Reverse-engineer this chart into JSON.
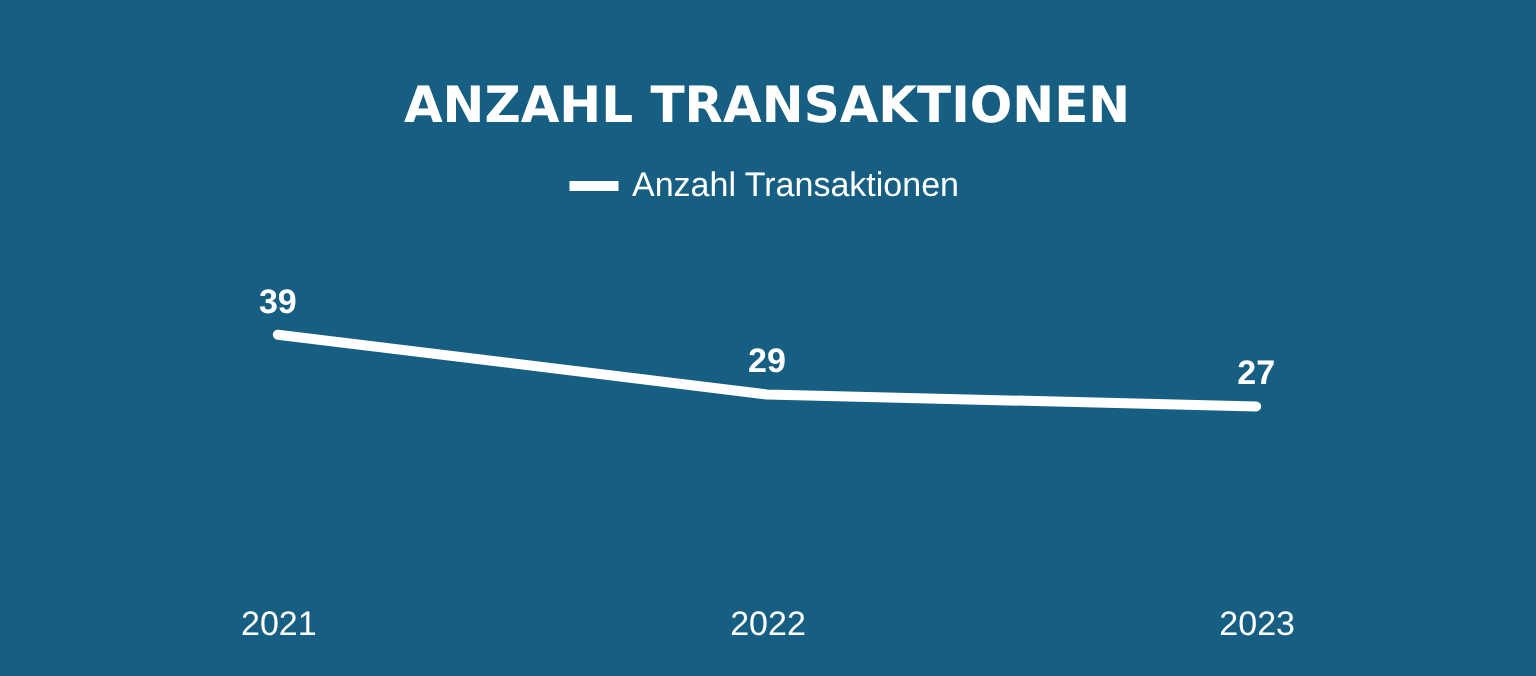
{
  "chart_data": {
    "type": "line",
    "title": "ANZAHL TRANSAKTIONEN",
    "categories": [
      "2021",
      "2022",
      "2023"
    ],
    "series": [
      {
        "name": "Anzahl Transaktionen",
        "color": "#ffffff",
        "values": [
          39,
          29,
          27
        ]
      }
    ],
    "data_labels": true,
    "legend": "top",
    "grid": false,
    "marker": "none",
    "line_style": "solid"
  }
}
